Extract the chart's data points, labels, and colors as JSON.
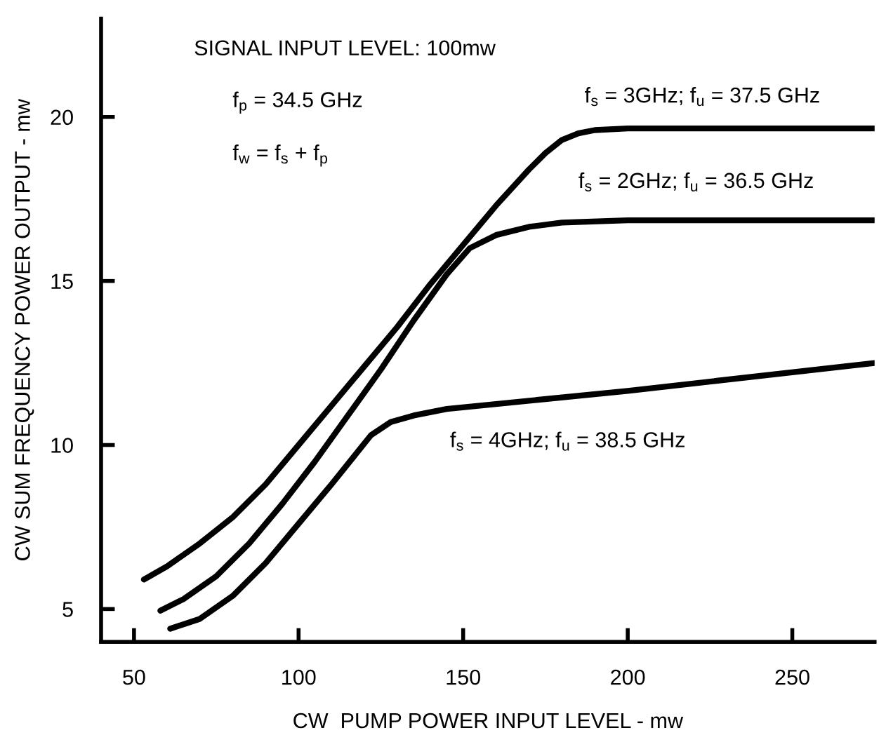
{
  "chart_data": {
    "type": "line",
    "xlabel": "CW  PUMP POWER INPUT LEVEL - mw",
    "ylabel": "CW SUM FREQUENCY POWER OUTPUT - mw",
    "xlim": [
      40,
      275
    ],
    "ylim": [
      4,
      23
    ],
    "xticks": [
      50,
      100,
      150,
      200,
      250
    ],
    "yticks": [
      5,
      10,
      15,
      20
    ],
    "grid": false,
    "legend": false,
    "marker": "none",
    "line_style": "solid",
    "series": [
      {
        "color": "#000000",
        "x": [
          53,
          60,
          70,
          80,
          90,
          100,
          110,
          120,
          130,
          140,
          150,
          160,
          170,
          175,
          180,
          185,
          190,
          200,
          275
        ],
        "values": [
          5.9,
          6.3,
          7.0,
          7.8,
          8.8,
          10.0,
          11.2,
          12.4,
          13.6,
          14.9,
          16.1,
          17.3,
          18.4,
          18.9,
          19.3,
          19.5,
          19.6,
          19.65,
          19.65
        ]
      },
      {
        "color": "#000000",
        "x": [
          58,
          65,
          75,
          85,
          95,
          105,
          115,
          125,
          135,
          145,
          152,
          160,
          170,
          180,
          200,
          275
        ],
        "values": [
          4.95,
          5.3,
          6.0,
          7.0,
          8.2,
          9.5,
          10.9,
          12.3,
          13.8,
          15.2,
          16.0,
          16.4,
          16.65,
          16.78,
          16.85,
          16.85
        ]
      },
      {
        "color": "#000000",
        "x": [
          61,
          70,
          80,
          90,
          100,
          110,
          118,
          122,
          128,
          135,
          145,
          200,
          275
        ],
        "values": [
          4.4,
          4.7,
          5.4,
          6.4,
          7.6,
          8.8,
          9.8,
          10.3,
          10.7,
          10.9,
          11.1,
          11.65,
          12.5
        ]
      }
    ],
    "annotations": [
      "SIGNAL INPUT LEVEL: 100mw",
      "f$_{p}$ = 34.5 GHz",
      "f$_{w}$ = f$_{s}$ + f$_{p}$",
      "f$_{s}$ = 3GHz; f$_{u}$ = 37.5 GHz",
      "f$_{s}$ = 2GHz; f$_{u}$ = 36.5 GHz",
      "f$_{s}$ = 4GHz; f$_{u}$ = 38.5 GHz"
    ]
  }
}
